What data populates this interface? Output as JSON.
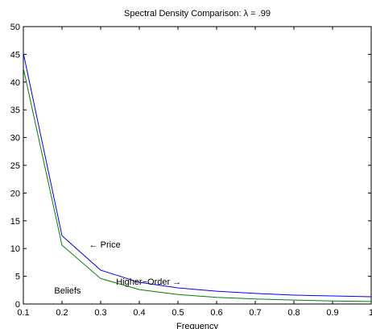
{
  "chart_data": {
    "type": "line",
    "title": "Spectral Density Comparison: λ = .99",
    "xlabel": "Frequency",
    "ylabel": "",
    "xlim": [
      0.1,
      1.0
    ],
    "ylim": [
      0,
      50
    ],
    "grid": false,
    "x_ticks": [
      "0.1",
      "0.2",
      "0.3",
      "0.4",
      "0.5",
      "0.6",
      "0.7",
      "0.8",
      "0.9",
      "1"
    ],
    "y_ticks": [
      "0",
      "5",
      "10",
      "15",
      "20",
      "25",
      "30",
      "35",
      "40",
      "45",
      "50"
    ],
    "x": [
      0.1,
      0.2,
      0.3,
      0.4,
      0.5,
      0.6,
      0.7,
      0.8,
      0.9,
      1.0
    ],
    "series": [
      {
        "key": "price",
        "color": "#0000ff",
        "values": [
          45.2,
          12.3,
          6.1,
          3.9,
          2.9,
          2.3,
          1.9,
          1.6,
          1.45,
          1.3
        ]
      },
      {
        "key": "beliefs",
        "color": "#008000",
        "values": [
          42.5,
          10.6,
          4.6,
          2.6,
          1.7,
          1.2,
          0.9,
          0.7,
          0.55,
          0.45
        ]
      }
    ],
    "annotations": [
      {
        "key": "price",
        "text": "← Price",
        "x": 0.27,
        "y": 10.2
      },
      {
        "key": "beliefs_line1",
        "text": "Higher−Order →",
        "x": 0.34,
        "y": 3.5
      },
      {
        "key": "beliefs_line2",
        "text": "Beliefs",
        "x": 0.18,
        "y": 1.9
      }
    ]
  }
}
